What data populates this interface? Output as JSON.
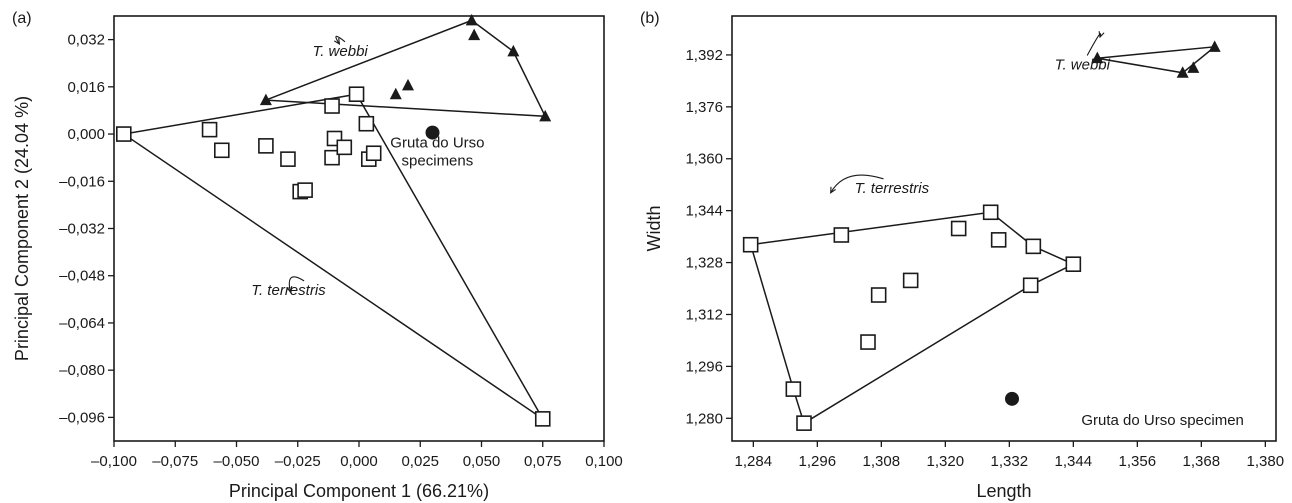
{
  "chart_data": [
    {
      "type": "scatter",
      "panel_label": "(a)",
      "xlabel": "Principal Component 1 (66.21%)",
      "ylabel": "Principal Component 2 (24.04 %)",
      "xlim": [
        -0.1,
        0.1
      ],
      "ylim": [
        -0.104,
        0.04
      ],
      "xticks": [
        -0.1,
        -0.075,
        -0.05,
        -0.025,
        0.0,
        0.025,
        0.05,
        0.075,
        0.1
      ],
      "xtick_labels": [
        "–0,100",
        "–0,075",
        "–0,050",
        "–0,025",
        "0,000",
        "0,025",
        "0,050",
        "0,075",
        "0,100"
      ],
      "yticks": [
        0.032,
        0.016,
        0.0,
        -0.016,
        -0.032,
        -0.048,
        -0.064,
        -0.08,
        -0.096
      ],
      "ytick_labels": [
        "0,032",
        "0,016",
        "0,000",
        "–0,016",
        "–0,032",
        "–0,048",
        "–0,064",
        "–0,080",
        "–0,096"
      ],
      "grid": false,
      "series": [
        {
          "name": "T. webbi",
          "marker": "triangle",
          "points": [
            [
              0.046,
              0.0385
            ],
            [
              0.047,
              0.0335
            ],
            [
              0.063,
              0.028
            ],
            [
              0.076,
              0.006
            ],
            [
              0.015,
              0.0135
            ],
            [
              0.02,
              0.0165
            ],
            [
              -0.038,
              0.0115
            ]
          ],
          "hull": [
            [
              0.046,
              0.0385
            ],
            [
              0.063,
              0.028
            ],
            [
              0.076,
              0.006
            ],
            [
              -0.038,
              0.0115
            ]
          ]
        },
        {
          "name": "T. terrestris",
          "marker": "square",
          "points": [
            [
              -0.096,
              0.0
            ],
            [
              -0.061,
              0.0015
            ],
            [
              -0.056,
              -0.0055
            ],
            [
              -0.038,
              -0.004
            ],
            [
              -0.029,
              -0.0085
            ],
            [
              -0.024,
              -0.0195
            ],
            [
              -0.022,
              -0.019
            ],
            [
              -0.011,
              0.0095
            ],
            [
              -0.01,
              -0.0015
            ],
            [
              -0.011,
              -0.008
            ],
            [
              -0.006,
              -0.0045
            ],
            [
              -0.001,
              0.0135
            ],
            [
              0.003,
              0.0035
            ],
            [
              0.004,
              -0.0085
            ],
            [
              0.006,
              -0.0065
            ],
            [
              0.075,
              -0.0965
            ]
          ],
          "hull": [
            [
              -0.096,
              0.0
            ],
            [
              -0.001,
              0.0135
            ],
            [
              0.075,
              -0.0965
            ]
          ]
        },
        {
          "name": "Gruta do Urso specimens",
          "marker": "circle",
          "points": [
            [
              0.03,
              0.0005
            ]
          ]
        }
      ],
      "annotations": [
        {
          "text": "T. webbi",
          "italic": true,
          "x": -0.019,
          "y": 0.0265,
          "target": [
            -0.008,
            0.0305
          ]
        },
        {
          "text": "T. terrestris",
          "italic": true,
          "x": -0.044,
          "y": -0.0545,
          "target": [
            -0.028,
            -0.0535
          ]
        },
        {
          "text_lines": [
            "Gruta do Urso",
            "specimens"
          ],
          "italic": false,
          "x": 0.032,
          "y": -0.0045
        }
      ]
    },
    {
      "type": "scatter",
      "panel_label": "(b)",
      "xlabel": "Length",
      "ylabel": "Width",
      "xlim": [
        1.28,
        1.382
      ],
      "ylim": [
        1.273,
        1.404
      ],
      "xticks": [
        1.284,
        1.296,
        1.308,
        1.32,
        1.332,
        1.344,
        1.356,
        1.368,
        1.38
      ],
      "xtick_labels": [
        "1,284",
        "1,296",
        "1,308",
        "1,320",
        "1,332",
        "1,344",
        "1,356",
        "1,368",
        "1,380"
      ],
      "yticks": [
        1.392,
        1.376,
        1.36,
        1.344,
        1.328,
        1.312,
        1.296,
        1.28
      ],
      "ytick_labels": [
        "1,392",
        "1,376",
        "1,360",
        "1,344",
        "1,328",
        "1,312",
        "1,296",
        "1,280"
      ],
      "grid": false,
      "series": [
        {
          "name": "T. webbi",
          "marker": "triangle",
          "points": [
            [
              1.3485,
              1.391
            ],
            [
              1.3705,
              1.3945
            ],
            [
              1.3645,
              1.3865
            ],
            [
              1.3665,
              1.388
            ]
          ],
          "hull": [
            [
              1.3485,
              1.391
            ],
            [
              1.3705,
              1.3945
            ],
            [
              1.3645,
              1.3865
            ]
          ]
        },
        {
          "name": "T. terrestris",
          "marker": "square",
          "points": [
            [
              1.2835,
              1.3335
            ],
            [
              1.3005,
              1.3365
            ],
            [
              1.3225,
              1.3385
            ],
            [
              1.3285,
              1.3435
            ],
            [
              1.33,
              1.335
            ],
            [
              1.3365,
              1.333
            ],
            [
              1.344,
              1.3275
            ],
            [
              1.336,
              1.321
            ],
            [
              1.3135,
              1.3225
            ],
            [
              1.3075,
              1.318
            ],
            [
              1.3055,
              1.3035
            ],
            [
              1.2915,
              1.289
            ],
            [
              1.2935,
              1.2785
            ]
          ],
          "hull": [
            [
              1.2835,
              1.3335
            ],
            [
              1.3285,
              1.3435
            ],
            [
              1.3365,
              1.333
            ],
            [
              1.344,
              1.3275
            ],
            [
              1.336,
              1.321
            ],
            [
              1.2935,
              1.2785
            ],
            [
              1.2915,
              1.289
            ]
          ]
        },
        {
          "name": "Gruta do Urso specimen",
          "marker": "circle",
          "points": [
            [
              1.3325,
              1.286
            ]
          ]
        }
      ],
      "annotations": [
        {
          "text": "T. webbi",
          "italic": true,
          "x": 1.3405,
          "y": 1.3875,
          "target": [
            1.349,
            1.3975
          ]
        },
        {
          "text": "T. terrestris",
          "italic": true,
          "x": 1.303,
          "y": 1.3495,
          "target": [
            1.2985,
            1.3495
          ]
        },
        {
          "text": "Gruta do Urso specimen",
          "italic": false,
          "x": 1.3455,
          "y": 1.278
        }
      ]
    }
  ]
}
